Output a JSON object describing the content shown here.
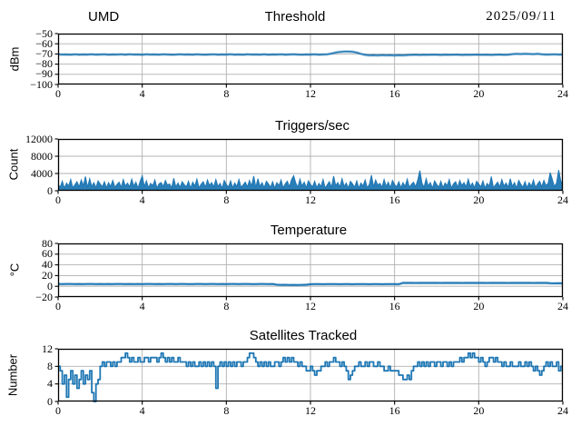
{
  "figure": {
    "background": "#ffffff",
    "line_color": "#1f77b4",
    "grid_color": "#b0b0b0",
    "frame_color": "#000000",
    "tick_color": "#000000"
  },
  "chart_data": [
    {
      "type": "line",
      "title": "Threshold",
      "title_left": "UMD",
      "title_right": "2025/09/11",
      "ylabel": "dBm",
      "xlim": [
        0,
        24
      ],
      "ylim": [
        -100,
        -50
      ],
      "xtick_values": [
        0,
        4,
        8,
        12,
        16,
        20,
        24
      ],
      "xtick_labels": [
        "0",
        "4",
        "8",
        "12",
        "16",
        "20",
        "24"
      ],
      "ytick_values": [
        -100,
        -90,
        -80,
        -70,
        -60,
        -50
      ],
      "ytick_labels": [
        "−100",
        "−90",
        "−80",
        "−70",
        "−60",
        "−50"
      ],
      "x_start": 0,
      "x_step": 0.2,
      "values": [
        -70.4,
        -70.6,
        -70.5,
        -70.8,
        -70.4,
        -70.7,
        -70.5,
        -70.6,
        -70.3,
        -70.7,
        -70.5,
        -70.4,
        -70.8,
        -70.5,
        -70.6,
        -70.4,
        -70.7,
        -70.3,
        -70.6,
        -70.5,
        -70.8,
        -70.4,
        -70.6,
        -70.5,
        -70.7,
        -70.4,
        -70.5,
        -70.8,
        -70.6,
        -70.3,
        -70.6,
        -70.5,
        -70.7,
        -70.4,
        -70.6,
        -70.8,
        -70.5,
        -70.4,
        -70.7,
        -70.5,
        -70.6,
        -70.3,
        -70.7,
        -70.5,
        -70.8,
        -70.4,
        -70.6,
        -70.5,
        -70.7,
        -70.4,
        -70.8,
        -70.5,
        -70.6,
        -70.4,
        -70.7,
        -70.5,
        -70.3,
        -70.6,
        -70.8,
        -70.5,
        -70.6,
        -70.4,
        -70.7,
        -70.5,
        -70.4,
        -69.6,
        -68.6,
        -68.0,
        -67.7,
        -67.6,
        -67.9,
        -68.7,
        -69.9,
        -70.9,
        -71.3,
        -71.2,
        -71.4,
        -71.1,
        -71.3,
        -71.2,
        -71.4,
        -71.2,
        -71.3,
        -71.1,
        -70.9,
        -70.7,
        -71.0,
        -70.8,
        -70.9,
        -70.7,
        -70.8,
        -71.0,
        -70.7,
        -70.9,
        -70.8,
        -70.7,
        -71.0,
        -70.8,
        -70.9,
        -70.7,
        -70.8,
        -70.9,
        -70.7,
        -71.0,
        -70.8,
        -70.6,
        -70.9,
        -70.7,
        -70.2,
        -69.9,
        -70.1,
        -69.8,
        -70.0,
        -70.2,
        -69.9,
        -70.4,
        -70.6,
        -70.5,
        -70.4,
        -70.6,
        -70.5
      ]
    },
    {
      "type": "area",
      "title": "Triggers/sec",
      "ylabel": "Count",
      "xlim": [
        0,
        24
      ],
      "ylim": [
        0,
        12000
      ],
      "xtick_values": [
        0,
        4,
        8,
        12,
        16,
        20,
        24
      ],
      "xtick_labels": [
        "0",
        "4",
        "8",
        "12",
        "16",
        "20",
        "24"
      ],
      "ytick_values": [
        0,
        4000,
        8000,
        12000
      ],
      "ytick_labels": [
        "0",
        "4000",
        "8000",
        "12000"
      ],
      "x_start": 0,
      "x_step": 0.1,
      "values": [
        1500,
        800,
        2200,
        600,
        1800,
        1100,
        2600,
        700,
        1400,
        2100,
        900,
        2500,
        1200,
        3300,
        800,
        2800,
        1000,
        1900,
        700,
        2300,
        1600,
        900,
        2100,
        700,
        1900,
        1000,
        2400,
        800,
        1500,
        2000,
        800,
        2600,
        1100,
        1800,
        900,
        2700,
        1100,
        2000,
        600,
        2200,
        3500,
        1000,
        2300,
        700,
        1700,
        1200,
        2500,
        600,
        1600,
        1900,
        1000,
        2400,
        1300,
        1600,
        700,
        2900,
        900,
        1800,
        800,
        2100,
        1400,
        900,
        2200,
        600,
        2000,
        1100,
        2700,
        700,
        1500,
        2100,
        800,
        2500,
        1200,
        1900,
        900,
        2600,
        1000,
        1700,
        600,
        2400,
        1500,
        800,
        2300,
        700,
        1800,
        1000,
        2600,
        800,
        1400,
        2000,
        900,
        2400,
        1100,
        3400,
        800,
        2800,
        1000,
        1900,
        700,
        2200,
        1600,
        800,
        2100,
        600,
        1900,
        1200,
        2500,
        700,
        1600,
        2200,
        900,
        2600,
        3500,
        1800,
        800,
        2700,
        1100,
        2000,
        700,
        2300,
        1500,
        900,
        2200,
        700,
        1700,
        1000,
        2600,
        600,
        1400,
        2100,
        800,
        3400,
        1200,
        1900,
        900,
        2800,
        1000,
        1800,
        600,
        2200,
        1600,
        800,
        2300,
        600,
        1800,
        1100,
        2500,
        700,
        1500,
        3600,
        900,
        2500,
        1300,
        1700,
        800,
        2600,
        1000,
        2000,
        700,
        2400,
        1400,
        900,
        2100,
        700,
        1900,
        1000,
        2700,
        800,
        1500,
        2000,
        900,
        2500,
        4700,
        1800,
        800,
        2800,
        1100,
        1900,
        600,
        2300,
        1500,
        800,
        2200,
        700,
        1800,
        1200,
        2600,
        600,
        1600,
        2100,
        800,
        2400,
        1200,
        1900,
        900,
        2700,
        1000,
        1800,
        700,
        2200,
        1600,
        900,
        2300,
        600,
        1700,
        1100,
        3300,
        700,
        1400,
        2000,
        900,
        2600,
        1100,
        1800,
        800,
        2800,
        1000,
        1900,
        600,
        2400,
        1500,
        800,
        2100,
        700,
        1900,
        1000,
        2500,
        800,
        1600,
        2200,
        900,
        2400,
        1200,
        1700,
        4200,
        2600,
        1000,
        1800,
        4800,
        2300,
        1500
      ]
    },
    {
      "type": "line",
      "title": "Temperature",
      "ylabel": "°C",
      "xlim": [
        0,
        24
      ],
      "ylim": [
        -20,
        80
      ],
      "xtick_values": [
        0,
        4,
        8,
        12,
        16,
        20,
        24
      ],
      "xtick_labels": [
        "0",
        "4",
        "8",
        "12",
        "16",
        "20",
        "24"
      ],
      "ytick_values": [
        -20,
        0,
        20,
        40,
        60,
        80
      ],
      "ytick_labels": [
        "−20",
        "0",
        "20",
        "40",
        "60",
        "80"
      ],
      "x_start": 0,
      "x_step": 0.2,
      "values": [
        4.2,
        4.1,
        4.3,
        4.2,
        4.0,
        4.3,
        4.1,
        4.2,
        4.3,
        4.1,
        4.2,
        4.0,
        4.3,
        4.1,
        4.2,
        4.3,
        4.1,
        4.2,
        4.0,
        4.3,
        4.1,
        4.2,
        4.3,
        4.1,
        4.2,
        4.0,
        4.3,
        4.2,
        4.1,
        4.3,
        4.2,
        4.1,
        4.0,
        4.2,
        4.3,
        4.1,
        4.2,
        4.3,
        4.0,
        4.2,
        4.1,
        4.3,
        4.2,
        4.1,
        4.3,
        4.2,
        4.0,
        4.1,
        4.2,
        4.3,
        4.1,
        4.2,
        3.0,
        2.5,
        2.7,
        2.4,
        2.6,
        2.3,
        2.6,
        2.9,
        3.9,
        4.0,
        4.1,
        3.9,
        4.0,
        4.1,
        4.0,
        3.9,
        4.1,
        4.0,
        3.9,
        4.0,
        4.1,
        4.0,
        3.9,
        4.1,
        4.0,
        3.9,
        4.0,
        4.1,
        4.0,
        3.9,
        6.2,
        6.4,
        6.3,
        6.1,
        6.3,
        6.2,
        6.4,
        6.2,
        6.3,
        6.1,
        6.2,
        6.4,
        6.3,
        6.2,
        6.1,
        6.3,
        6.2,
        6.4,
        6.2,
        6.3,
        6.1,
        6.2,
        6.3,
        6.4,
        6.2,
        6.1,
        6.3,
        6.2,
        6.4,
        6.3,
        6.2,
        6.1,
        6.3,
        6.2,
        6.3,
        5.8,
        5.6,
        5.7,
        5.6
      ]
    },
    {
      "type": "step",
      "title": "Satellites Tracked",
      "ylabel": "Number",
      "xlim": [
        0,
        24
      ],
      "ylim": [
        0,
        12
      ],
      "xtick_values": [
        0,
        4,
        8,
        12,
        16,
        20,
        24
      ],
      "xtick_labels": [
        "0",
        "4",
        "8",
        "12",
        "16",
        "20",
        "24"
      ],
      "ytick_values": [
        0,
        4,
        8,
        12
      ],
      "ytick_labels": [
        "0",
        "4",
        "8",
        "12"
      ],
      "x_start": 0,
      "x_step": 0.1,
      "values": [
        8,
        7,
        4,
        6,
        1,
        5,
        7,
        4,
        6,
        3,
        5,
        7,
        4,
        6,
        5,
        7,
        2,
        0,
        4,
        5,
        8,
        9,
        8,
        9,
        9,
        8,
        9,
        8,
        9,
        9,
        10,
        10,
        11,
        10,
        9,
        10,
        9,
        9,
        10,
        9,
        9,
        10,
        10,
        9,
        10,
        10,
        10,
        9,
        10,
        11,
        10,
        9,
        10,
        9,
        10,
        9,
        9,
        10,
        9,
        9,
        9,
        8,
        9,
        8,
        9,
        8,
        8,
        9,
        8,
        9,
        8,
        9,
        8,
        9,
        8,
        3,
        8,
        9,
        8,
        9,
        8,
        9,
        8,
        9,
        8,
        9,
        9,
        8,
        9,
        9,
        10,
        11,
        11,
        10,
        9,
        8,
        9,
        8,
        9,
        8,
        9,
        8,
        8,
        9,
        9,
        8,
        9,
        10,
        9,
        10,
        9,
        10,
        9,
        9,
        8,
        9,
        8,
        8,
        7,
        7,
        8,
        7,
        6,
        7,
        7,
        8,
        8,
        9,
        8,
        9,
        9,
        10,
        9,
        9,
        8,
        9,
        8,
        7,
        5,
        6,
        7,
        8,
        8,
        9,
        8,
        8,
        9,
        8,
        9,
        9,
        8,
        8,
        9,
        8,
        8,
        7,
        7,
        8,
        7,
        7,
        7,
        7,
        6,
        6,
        5,
        5,
        6,
        5,
        7,
        8,
        8,
        9,
        8,
        9,
        8,
        9,
        8,
        9,
        9,
        8,
        9,
        9,
        8,
        9,
        9,
        8,
        9,
        8,
        9,
        9,
        9,
        10,
        9,
        10,
        10,
        11,
        10,
        11,
        10,
        10,
        9,
        10,
        9,
        8,
        9,
        10,
        10,
        9,
        10,
        9,
        9,
        8,
        9,
        8,
        8,
        9,
        8,
        8,
        8,
        9,
        8,
        8,
        9,
        8,
        9,
        8,
        7,
        8,
        7,
        6,
        7,
        8,
        9,
        8,
        9,
        8,
        8,
        9,
        7,
        8,
        8
      ]
    }
  ]
}
